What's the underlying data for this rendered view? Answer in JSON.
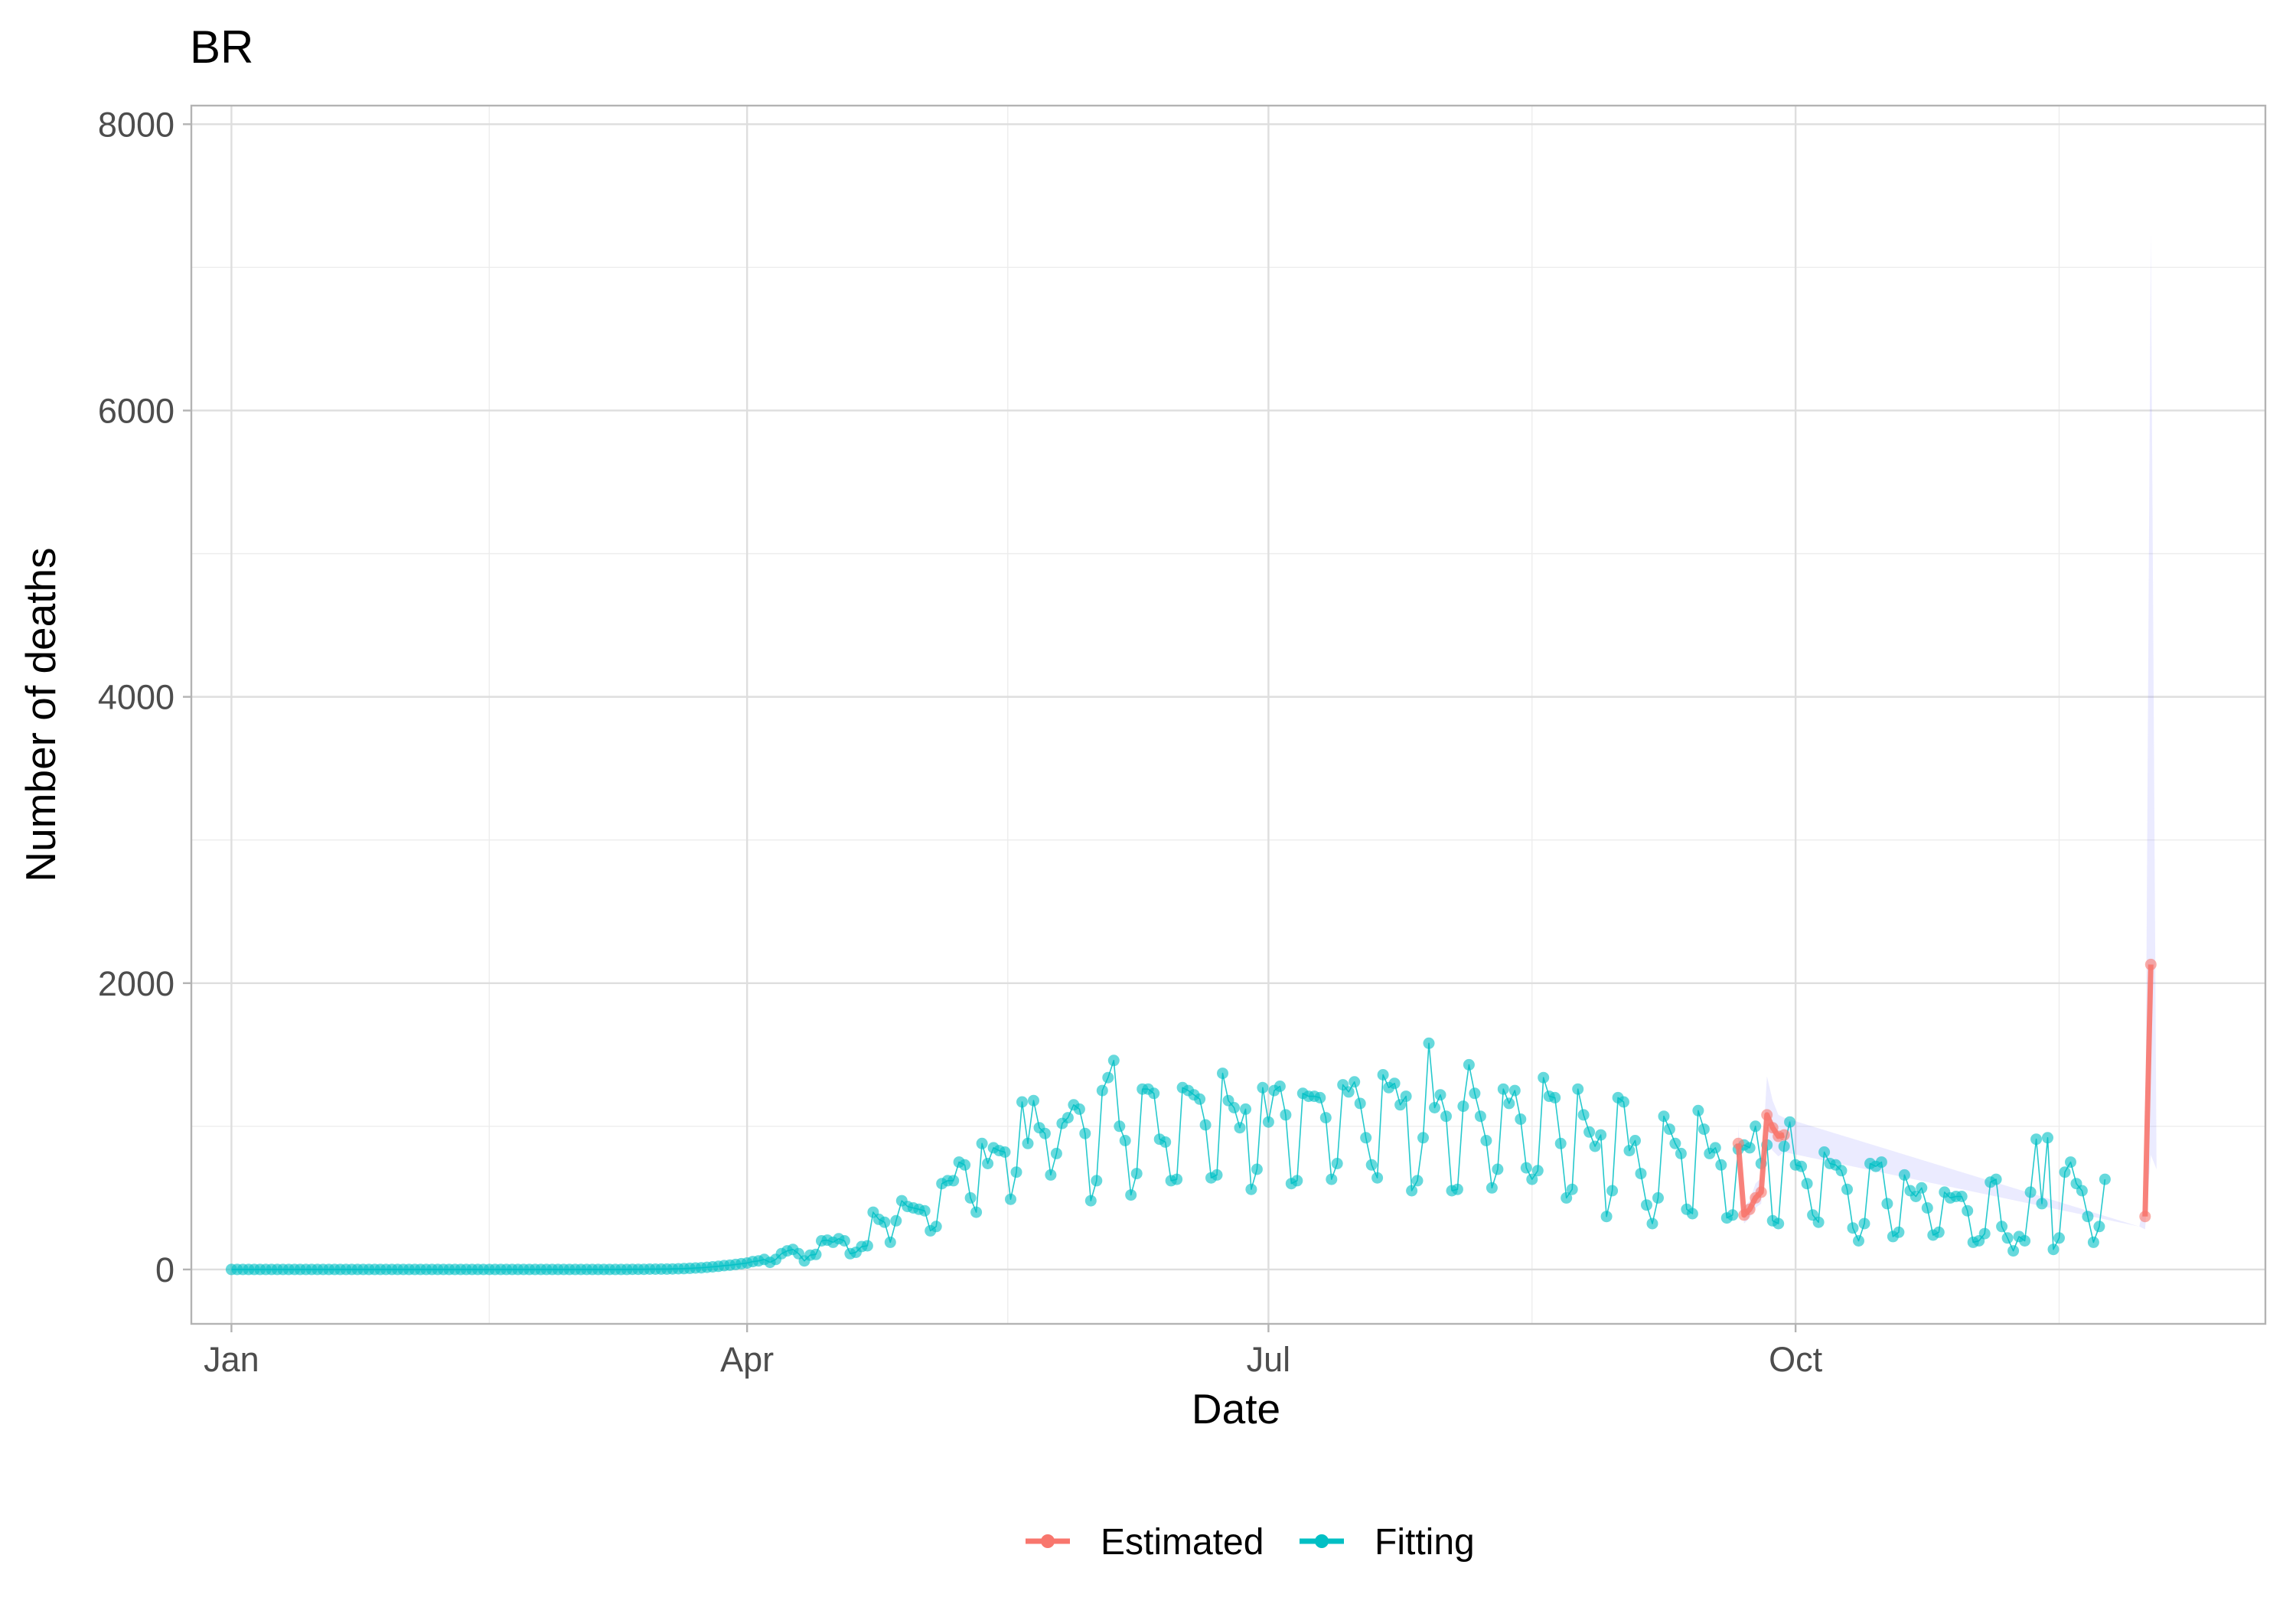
{
  "chart_data": {
    "type": "line",
    "title": "BR",
    "xlabel": "Date",
    "ylabel": "Number of  deaths",
    "x_range": [
      "2020-12-25",
      "2021-12-22"
    ],
    "ylim": [
      -380,
      8130
    ],
    "x_ticks": [
      {
        "date": "2021-01-01",
        "label": "Jan"
      },
      {
        "date": "2021-04-01",
        "label": "Apr"
      },
      {
        "date": "2021-07-01",
        "label": "Jul"
      },
      {
        "date": "2021-10-01",
        "label": "Oct"
      }
    ],
    "y_ticks": [
      0,
      2000,
      4000,
      6000,
      8000
    ],
    "grid": true,
    "legend": {
      "position": "bottom"
    },
    "colors": {
      "Estimated": "#F8766D",
      "Fitting": "#00BFC4",
      "interval": "#7b7bff"
    },
    "series": [
      {
        "name": "Fitting",
        "start_date": "2021-01-01",
        "values": [
          0,
          0,
          0,
          0,
          0,
          0,
          0,
          0,
          0,
          0,
          0,
          0,
          0,
          0,
          0,
          0,
          0,
          0,
          0,
          0,
          0,
          0,
          0,
          0,
          0,
          0,
          0,
          0,
          0,
          0,
          0,
          0,
          0,
          0,
          0,
          0,
          0,
          0,
          0,
          0,
          0,
          0,
          0,
          0,
          0,
          0,
          0,
          0,
          0,
          0,
          0,
          0,
          0,
          0,
          0,
          0,
          0,
          0,
          0,
          0,
          0,
          0,
          0,
          0,
          0,
          0,
          0,
          0,
          0,
          0,
          1,
          1,
          1,
          2,
          2,
          3,
          3,
          4,
          5,
          6,
          8,
          10,
          12,
          15,
          18,
          22,
          27,
          30,
          35,
          40,
          45,
          55,
          60,
          70,
          50,
          70,
          110,
          130,
          140,
          110,
          60,
          100,
          105,
          200,
          205,
          190,
          215,
          200,
          110,
          120,
          160,
          165,
          400,
          350,
          330,
          190,
          340,
          480,
          440,
          430,
          420,
          410,
          270,
          300,
          600,
          620,
          620,
          750,
          730,
          500,
          400,
          880,
          740,
          850,
          830,
          820,
          490,
          680,
          1170,
          880,
          1180,
          990,
          950,
          660,
          810,
          1020,
          1060,
          1150,
          1120,
          950,
          480,
          620,
          1250,
          1340,
          1460,
          1000,
          900,
          520,
          670,
          1260,
          1260,
          1230,
          910,
          890,
          620,
          630,
          1270,
          1250,
          1220,
          1190,
          1010,
          640,
          660,
          1370,
          1180,
          1130,
          990,
          1120,
          560,
          700,
          1270,
          1030,
          1250,
          1280,
          1080,
          600,
          620,
          1230,
          1210,
          1210,
          1200,
          1060,
          630,
          740,
          1290,
          1240,
          1310,
          1160,
          920,
          730,
          640,
          1360,
          1270,
          1300,
          1150,
          1210,
          550,
          620,
          920,
          1580,
          1130,
          1220,
          1070,
          550,
          560,
          1140,
          1430,
          1230,
          1070,
          900,
          570,
          700,
          1260,
          1160,
          1250,
          1050,
          710,
          630,
          690,
          1340,
          1210,
          1200,
          880,
          500,
          560,
          1260,
          1080,
          960,
          860,
          940,
          370,
          550,
          1200,
          1170,
          830,
          900,
          670,
          450,
          320,
          500,
          1070,
          980,
          880,
          810,
          420,
          390,
          1110,
          980,
          810,
          850,
          730,
          360,
          380,
          840,
          870,
          850,
          1000,
          740,
          870,
          340,
          320,
          860,
          1030,
          730,
          720,
          600,
          380,
          330,
          820,
          740,
          730,
          690,
          560,
          290,
          200,
          320,
          740,
          720,
          750,
          460,
          230,
          260,
          660,
          550,
          510,
          570,
          430,
          240,
          260,
          540,
          500,
          510,
          510,
          410,
          190,
          200,
          250,
          610,
          630,
          300,
          220,
          130,
          230,
          200,
          540,
          910,
          460,
          920,
          140,
          220,
          680,
          750,
          600,
          550,
          370,
          190,
          300,
          630
        ]
      },
      {
        "name": "Estimated",
        "start_date": "2021-09-21",
        "values": [
          880,
          380,
          420,
          500,
          540,
          1080,
          990,
          930,
          940
        ]
      },
      {
        "name": "Estimated",
        "start_date": "2021-12-01",
        "values": [
          370,
          2130
        ]
      }
    ],
    "interval": {
      "name": "Estimated",
      "points": [
        {
          "date": "2021-09-21",
          "low": 760,
          "high": 1000
        },
        {
          "date": "2021-09-22",
          "low": 320,
          "high": 440
        },
        {
          "date": "2021-09-23",
          "low": 360,
          "high": 480
        },
        {
          "date": "2021-09-24",
          "low": 430,
          "high": 600
        },
        {
          "date": "2021-09-25",
          "low": 460,
          "high": 640
        },
        {
          "date": "2021-09-26",
          "low": 880,
          "high": 1350
        },
        {
          "date": "2021-09-27",
          "low": 830,
          "high": 1180
        },
        {
          "date": "2021-09-28",
          "low": 790,
          "high": 1080
        },
        {
          "date": "2021-09-29",
          "low": 820,
          "high": 1060
        },
        {
          "date": "2021-11-30",
          "low": 300,
          "high": 300
        },
        {
          "date": "2021-12-01",
          "low": 280,
          "high": 500
        },
        {
          "date": "2021-12-02",
          "low": 800,
          "high": 7250
        },
        {
          "date": "2021-12-03",
          "low": 700,
          "high": 700
        }
      ]
    }
  }
}
